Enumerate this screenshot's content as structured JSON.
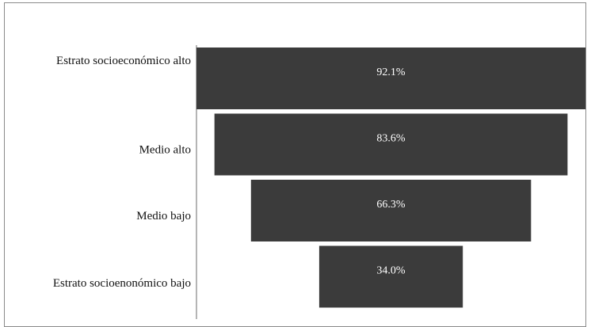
{
  "chart_data": {
    "type": "bar",
    "subtype": "funnel",
    "categories": [
      "Estrato socioeconómico alto",
      "Medio alto",
      "Medio bajo",
      "Estrato socioenonómico bajo"
    ],
    "values": [
      92.1,
      83.6,
      66.3,
      34.0
    ],
    "value_labels": [
      "92.1%",
      "83.6%",
      "66.3%",
      "34.0%"
    ],
    "unit": "%",
    "xlim": [
      0,
      92.1
    ],
    "bar_color": "#3b3b3b",
    "value_label_color": "#ffffff",
    "title": "",
    "xlabel": "",
    "ylabel": "",
    "grid": false,
    "legend": "none"
  }
}
